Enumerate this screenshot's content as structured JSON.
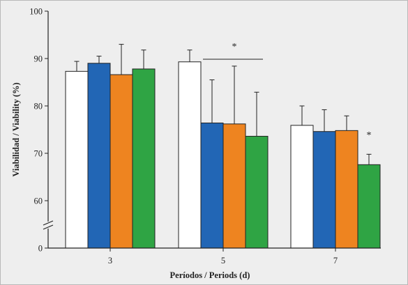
{
  "chart_data": {
    "type": "bar",
    "title": "",
    "xlabel": "Períodos / Periods (d)",
    "ylabel": "Viabilidad / Viability (%)",
    "categories": [
      "3",
      "5",
      "7"
    ],
    "ylim": [
      0,
      100
    ],
    "axis_break": [
      0,
      55
    ],
    "yticks": [
      "0",
      "60",
      "70",
      "80",
      "90",
      "100"
    ],
    "grid": false,
    "error_bars": true,
    "series": [
      {
        "color": "#ffffff",
        "values": [
          87.3,
          89.3,
          75.9
        ],
        "errors": [
          2.1,
          2.5,
          4.1
        ]
      },
      {
        "color": "#2266b5",
        "values": [
          89.0,
          76.4,
          74.6
        ],
        "errors": [
          1.5,
          9.1,
          4.6
        ]
      },
      {
        "color": "#ee8420",
        "values": [
          86.6,
          76.2,
          74.8
        ],
        "errors": [
          6.4,
          12.2,
          3.1
        ]
      },
      {
        "color": "#2fa444",
        "values": [
          87.8,
          73.6,
          67.6
        ],
        "errors": [
          4.0,
          9.3,
          2.2
        ]
      }
    ],
    "annotations": [
      {
        "text": "*",
        "target": "5"
      },
      {
        "text": "*",
        "target": "7"
      }
    ]
  }
}
